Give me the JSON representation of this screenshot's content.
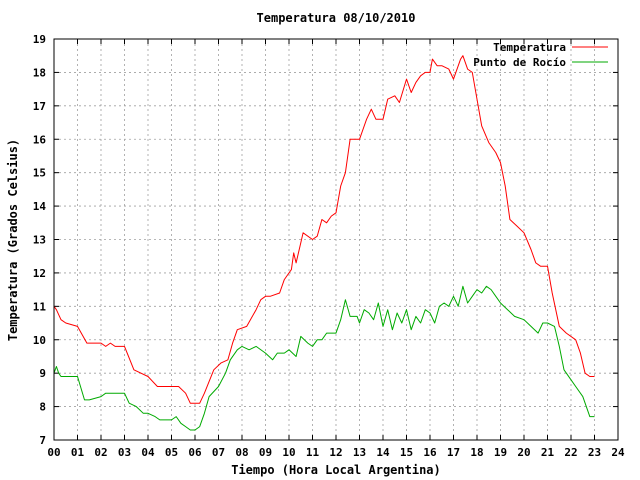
{
  "chart_data": {
    "type": "line",
    "title": "Temperatura 08/10/2010",
    "xlabel": "Tiempo (Hora Local Argentina)",
    "ylabel": "Temperatura (Grados Celsius)",
    "xlim": [
      0,
      24
    ],
    "ylim": [
      7,
      19
    ],
    "xticks": [
      0,
      1,
      2,
      3,
      4,
      5,
      6,
      7,
      8,
      9,
      10,
      11,
      12,
      13,
      14,
      15,
      16,
      17,
      18,
      19,
      20,
      21,
      22,
      23,
      24
    ],
    "xtick_labels": [
      "00",
      "01",
      "02",
      "03",
      "04",
      "05",
      "06",
      "07",
      "08",
      "09",
      "10",
      "11",
      "12",
      "13",
      "14",
      "15",
      "16",
      "17",
      "18",
      "19",
      "20",
      "21",
      "22",
      "23",
      "24"
    ],
    "yticks": [
      7,
      8,
      9,
      10,
      11,
      12,
      13,
      14,
      15,
      16,
      17,
      18,
      19
    ],
    "grid": true,
    "legend_position": "top-right",
    "series": [
      {
        "name": "Temperatura",
        "color": "#ff0000",
        "x": [
          0,
          0.1,
          0.3,
          0.5,
          1.0,
          1.4,
          1.6,
          2.0,
          2.2,
          2.4,
          2.6,
          3.0,
          3.4,
          4.0,
          4.4,
          4.6,
          5.0,
          5.3,
          5.6,
          5.8,
          6.0,
          6.2,
          6.4,
          6.8,
          7.1,
          7.4,
          7.6,
          7.8,
          8.2,
          8.6,
          8.8,
          9.0,
          9.2,
          9.6,
          9.8,
          10.0,
          10.1,
          10.2,
          10.3,
          10.5,
          10.6,
          11.0,
          11.2,
          11.4,
          11.6,
          11.8,
          12.0,
          12.2,
          12.4,
          12.6,
          12.8,
          13.0,
          13.3,
          13.5,
          13.7,
          14.0,
          14.2,
          14.5,
          14.7,
          15.0,
          15.2,
          15.4,
          15.6,
          15.8,
          16.0,
          16.1,
          16.3,
          16.5,
          16.8,
          17.0,
          17.3,
          17.4,
          17.6,
          17.8,
          18.0,
          18.2,
          18.5,
          18.8,
          19.0,
          19.2,
          19.4,
          19.7,
          20.0,
          20.3,
          20.5,
          20.7,
          21.0,
          21.2,
          21.5,
          21.8,
          22.2,
          22.4,
          22.6,
          22.8,
          23.0
        ],
        "values": [
          11.0,
          10.9,
          10.6,
          10.5,
          10.4,
          9.9,
          9.9,
          9.9,
          9.8,
          9.9,
          9.8,
          9.8,
          9.1,
          8.9,
          8.6,
          8.6,
          8.6,
          8.6,
          8.4,
          8.1,
          8.1,
          8.1,
          8.4,
          9.1,
          9.3,
          9.4,
          9.9,
          10.3,
          10.4,
          10.9,
          11.2,
          11.3,
          11.3,
          11.4,
          11.8,
          12.0,
          12.1,
          12.6,
          12.3,
          12.9,
          13.2,
          13.0,
          13.1,
          13.6,
          13.5,
          13.7,
          13.8,
          14.6,
          15.0,
          16.0,
          16.0,
          16.0,
          16.6,
          16.9,
          16.6,
          16.6,
          17.2,
          17.3,
          17.1,
          17.8,
          17.4,
          17.7,
          17.9,
          18.0,
          18.0,
          18.4,
          18.2,
          18.2,
          18.1,
          17.8,
          18.4,
          18.5,
          18.1,
          18.0,
          17.2,
          16.4,
          15.9,
          15.6,
          15.3,
          14.6,
          13.6,
          13.4,
          13.2,
          12.7,
          12.3,
          12.2,
          12.2,
          11.4,
          10.4,
          10.2,
          10.0,
          9.6,
          9.0,
          8.9,
          8.9
        ]
      },
      {
        "name": "Punto de Rocío",
        "color": "#00aa00",
        "x": [
          0,
          0.1,
          0.2,
          0.3,
          0.5,
          1.0,
          1.3,
          1.5,
          2.0,
          2.2,
          2.5,
          3.0,
          3.2,
          3.5,
          3.8,
          4.0,
          4.3,
          4.5,
          5.0,
          5.2,
          5.4,
          5.6,
          5.8,
          6.0,
          6.2,
          6.4,
          6.6,
          7.0,
          7.3,
          7.5,
          7.8,
          8.0,
          8.3,
          8.6,
          9.0,
          9.3,
          9.5,
          9.8,
          10.0,
          10.3,
          10.5,
          10.8,
          11.0,
          11.2,
          11.4,
          11.6,
          12.0,
          12.2,
          12.4,
          12.6,
          12.9,
          13.0,
          13.2,
          13.4,
          13.6,
          13.8,
          14.0,
          14.2,
          14.4,
          14.6,
          14.8,
          15.0,
          15.2,
          15.4,
          15.6,
          15.8,
          16.0,
          16.2,
          16.4,
          16.6,
          16.8,
          17.0,
          17.2,
          17.4,
          17.6,
          17.8,
          18.0,
          18.2,
          18.4,
          18.6,
          18.8,
          19.0,
          19.3,
          19.6,
          20.0,
          20.3,
          20.6,
          20.8,
          21.0,
          21.3,
          21.5,
          21.7,
          22.0,
          22.2,
          22.5,
          22.8,
          23.0
        ],
        "values": [
          9.0,
          9.2,
          9.0,
          8.9,
          8.9,
          8.9,
          8.2,
          8.2,
          8.3,
          8.4,
          8.4,
          8.4,
          8.1,
          8.0,
          7.8,
          7.8,
          7.7,
          7.6,
          7.6,
          7.7,
          7.5,
          7.4,
          7.3,
          7.3,
          7.4,
          7.8,
          8.3,
          8.6,
          9.0,
          9.4,
          9.7,
          9.8,
          9.7,
          9.8,
          9.6,
          9.4,
          9.6,
          9.6,
          9.7,
          9.5,
          10.1,
          9.9,
          9.8,
          10.0,
          10.0,
          10.2,
          10.2,
          10.6,
          11.2,
          10.7,
          10.7,
          10.5,
          10.9,
          10.8,
          10.6,
          11.1,
          10.4,
          10.9,
          10.3,
          10.8,
          10.5,
          10.9,
          10.3,
          10.7,
          10.5,
          10.9,
          10.8,
          10.5,
          11.0,
          11.1,
          11.0,
          11.3,
          11.0,
          11.6,
          11.1,
          11.3,
          11.5,
          11.4,
          11.6,
          11.5,
          11.3,
          11.1,
          10.9,
          10.7,
          10.6,
          10.4,
          10.2,
          10.5,
          10.5,
          10.4,
          9.8,
          9.1,
          8.8,
          8.6,
          8.3,
          7.7,
          7.7
        ]
      }
    ]
  }
}
